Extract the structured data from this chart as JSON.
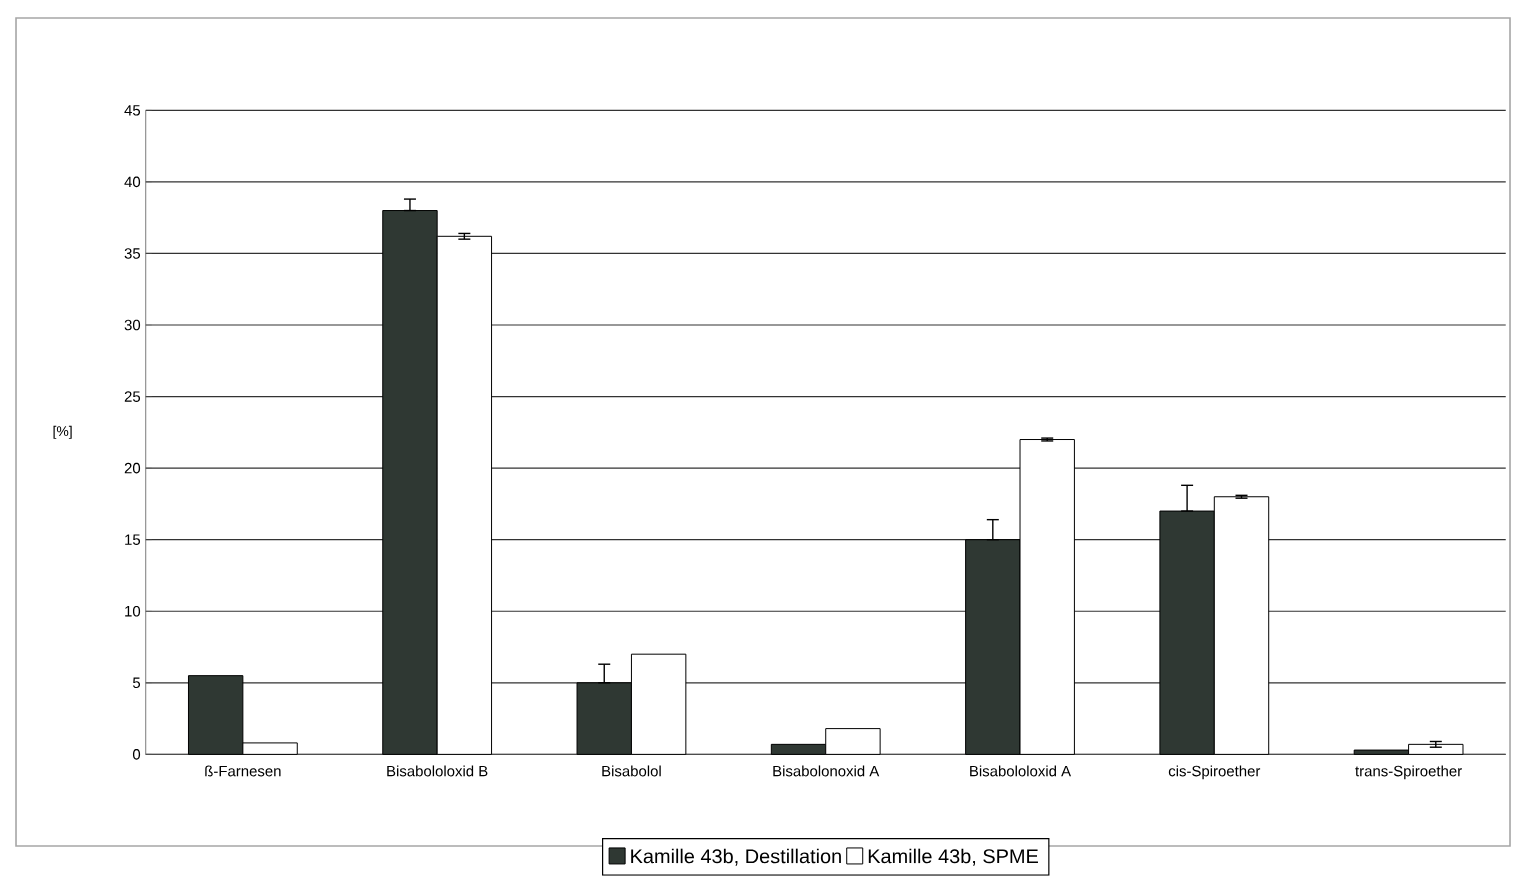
{
  "chart_data": {
    "type": "bar",
    "ylabel": "[%]",
    "categories": [
      "ß-Farnesen",
      "Bisabololoxid B",
      "Bisabolol",
      "Bisabolonoxid A",
      "Bisabololoxid A",
      "cis-Spiroether",
      "trans-Spiroether"
    ],
    "series": [
      {
        "name": "Kamille 43b, Destillation",
        "color": "#2f3833",
        "values": [
          5.5,
          38,
          5,
          0.7,
          15,
          17,
          0.3
        ],
        "errors": [
          null,
          [
            38,
            38.8
          ],
          [
            5,
            6.3
          ],
          null,
          [
            15,
            16.4
          ],
          [
            17,
            18.8
          ],
          null
        ]
      },
      {
        "name": "Kamille 43b, SPME",
        "color": "#ffffff",
        "values": [
          0.8,
          36.2,
          7,
          1.8,
          22,
          18,
          0.7
        ],
        "errors": [
          null,
          [
            36,
            36.4
          ],
          null,
          null,
          [
            21.9,
            22.1
          ],
          [
            17.9,
            18.1
          ],
          [
            0.5,
            0.9
          ]
        ]
      }
    ],
    "ylim": [
      0,
      45
    ],
    "yticks": [
      0,
      5,
      10,
      15,
      20,
      25,
      30,
      35,
      40,
      45
    ],
    "grid": "y",
    "legend": "bottom"
  }
}
